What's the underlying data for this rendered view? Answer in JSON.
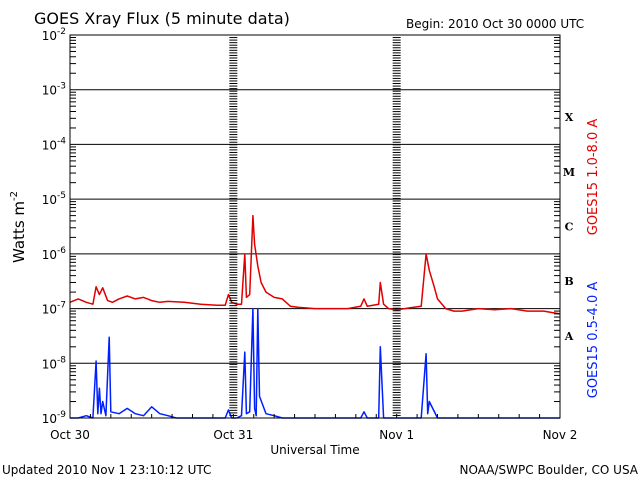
{
  "chart_data": {
    "type": "line",
    "title": "GOES Xray Flux (5 minute data)",
    "begin_label": "Begin:  2010 Oct 30 0000 UTC",
    "xlabel": "Universal Time",
    "ylabel_base": "Watts m",
    "ylabel_exp": "-2",
    "footer_left": "Updated 2010 Nov  1 23:10:12 UTC",
    "footer_right": "NOAA/SWPC Boulder, CO USA",
    "x_ticks": [
      "Oct 30",
      "Oct 31",
      "Nov 1",
      "Nov 2"
    ],
    "xlim_days": [
      0,
      3
    ],
    "y_scale": "log",
    "ylim": [
      1e-09,
      0.01
    ],
    "y_ticks": [
      {
        "value": 1e-09,
        "base": "10",
        "exp": "-9"
      },
      {
        "value": 1e-08,
        "base": "10",
        "exp": "-8"
      },
      {
        "value": 1e-07,
        "base": "10",
        "exp": "-7"
      },
      {
        "value": 1e-06,
        "base": "10",
        "exp": "-6"
      },
      {
        "value": 1e-05,
        "base": "10",
        "exp": "-5"
      },
      {
        "value": 0.0001,
        "base": "10",
        "exp": "-4"
      },
      {
        "value": 0.001,
        "base": "10",
        "exp": "-3"
      },
      {
        "value": 0.01,
        "base": "10",
        "exp": "-2"
      }
    ],
    "flare_classes": [
      {
        "label": "A",
        "low": 1e-08,
        "high": 1e-07
      },
      {
        "label": "B",
        "low": 1e-07,
        "high": 1e-06
      },
      {
        "label": "C",
        "low": 1e-06,
        "high": 1e-05
      },
      {
        "label": "M",
        "low": 1e-05,
        "high": 0.0001
      },
      {
        "label": "X",
        "low": 0.0001,
        "high": 0.001
      }
    ],
    "grid": true,
    "series": [
      {
        "name": "GOES15 1.0-8.0 A",
        "color": "#e00000",
        "points": [
          [
            0.0,
            1.3e-07
          ],
          [
            0.05,
            1.5e-07
          ],
          [
            0.1,
            1.3e-07
          ],
          [
            0.14,
            1.2e-07
          ],
          [
            0.16,
            2.5e-07
          ],
          [
            0.18,
            1.8e-07
          ],
          [
            0.2,
            2.4e-07
          ],
          [
            0.23,
            1.4e-07
          ],
          [
            0.26,
            1.3e-07
          ],
          [
            0.3,
            1.5e-07
          ],
          [
            0.35,
            1.7e-07
          ],
          [
            0.4,
            1.5e-07
          ],
          [
            0.45,
            1.6e-07
          ],
          [
            0.5,
            1.4e-07
          ],
          [
            0.55,
            1.3e-07
          ],
          [
            0.6,
            1.35e-07
          ],
          [
            0.7,
            1.3e-07
          ],
          [
            0.8,
            1.2e-07
          ],
          [
            0.9,
            1.15e-07
          ],
          [
            0.95,
            1.15e-07
          ],
          [
            0.97,
            1.8e-07
          ],
          [
            0.99,
            1.3e-07
          ],
          [
            1.02,
            1.2e-07
          ],
          [
            1.05,
            1.2e-07
          ],
          [
            1.07,
            1e-06
          ],
          [
            1.08,
            1.6e-07
          ],
          [
            1.1,
            1.8e-07
          ],
          [
            1.12,
            5e-06
          ],
          [
            1.13,
            1.5e-06
          ],
          [
            1.15,
            6e-07
          ],
          [
            1.17,
            3e-07
          ],
          [
            1.2,
            2e-07
          ],
          [
            1.25,
            1.6e-07
          ],
          [
            1.3,
            1.5e-07
          ],
          [
            1.35,
            1.1e-07
          ],
          [
            1.4,
            1.05e-07
          ],
          [
            1.5,
            1e-07
          ],
          [
            1.6,
            1e-07
          ],
          [
            1.7,
            1e-07
          ],
          [
            1.78,
            1.1e-07
          ],
          [
            1.8,
            1.5e-07
          ],
          [
            1.82,
            1.1e-07
          ],
          [
            1.89,
            1.2e-07
          ],
          [
            1.9,
            3e-07
          ],
          [
            1.92,
            1.2e-07
          ],
          [
            1.95,
            1e-07
          ],
          [
            2.0,
            9.5e-08
          ],
          [
            2.05,
            1e-07
          ],
          [
            2.1,
            1.05e-07
          ],
          [
            2.15,
            1.1e-07
          ],
          [
            2.18,
            1e-06
          ],
          [
            2.2,
            5e-07
          ],
          [
            2.23,
            2.5e-07
          ],
          [
            2.25,
            1.5e-07
          ],
          [
            2.3,
            1e-07
          ],
          [
            2.35,
            9e-08
          ],
          [
            2.4,
            9e-08
          ],
          [
            2.5,
            1e-07
          ],
          [
            2.6,
            9.5e-08
          ],
          [
            2.7,
            1e-07
          ],
          [
            2.8,
            9e-08
          ],
          [
            2.9,
            9e-08
          ],
          [
            3.0,
            8e-08
          ]
        ]
      },
      {
        "name": "GOES15 0.5-4.0 A",
        "color": "#0020ff",
        "points": [
          [
            0.0,
            1e-09
          ],
          [
            0.05,
            1e-09
          ],
          [
            0.1,
            1.1e-09
          ],
          [
            0.14,
            1e-09
          ],
          [
            0.16,
            1.1e-08
          ],
          [
            0.17,
            1.2e-09
          ],
          [
            0.18,
            3.5e-09
          ],
          [
            0.19,
            1.2e-09
          ],
          [
            0.2,
            2e-09
          ],
          [
            0.22,
            1.1e-09
          ],
          [
            0.24,
            3e-08
          ],
          [
            0.25,
            1.3e-09
          ],
          [
            0.3,
            1.2e-09
          ],
          [
            0.35,
            1.5e-09
          ],
          [
            0.4,
            1.2e-09
          ],
          [
            0.45,
            1.1e-09
          ],
          [
            0.5,
            1.6e-09
          ],
          [
            0.55,
            1.2e-09
          ],
          [
            0.6,
            1.1e-09
          ],
          [
            0.65,
            1e-09
          ],
          [
            0.7,
            1e-09
          ],
          [
            0.8,
            1e-09
          ],
          [
            0.9,
            1e-09
          ],
          [
            0.95,
            1e-09
          ],
          [
            0.97,
            1.4e-09
          ],
          [
            0.99,
            1e-09
          ],
          [
            1.02,
            1e-09
          ],
          [
            1.05,
            1.1e-09
          ],
          [
            1.07,
            1.6e-08
          ],
          [
            1.08,
            1.2e-09
          ],
          [
            1.1,
            1.3e-09
          ],
          [
            1.12,
            1e-07
          ],
          [
            1.13,
            1.5e-09
          ],
          [
            1.14,
            1.1e-09
          ],
          [
            1.15,
            1e-07
          ],
          [
            1.16,
            2.5e-09
          ],
          [
            1.2,
            1.2e-09
          ],
          [
            1.25,
            1.1e-09
          ],
          [
            1.3,
            1e-09
          ],
          [
            1.35,
            1e-09
          ],
          [
            1.4,
            1e-09
          ],
          [
            1.5,
            1e-09
          ],
          [
            1.6,
            1e-09
          ],
          [
            1.7,
            1e-09
          ],
          [
            1.78,
            1e-09
          ],
          [
            1.8,
            1.3e-09
          ],
          [
            1.82,
            1e-09
          ],
          [
            1.89,
            1e-09
          ],
          [
            1.9,
            2e-08
          ],
          [
            1.92,
            1e-09
          ],
          [
            1.95,
            1e-09
          ],
          [
            2.0,
            1e-09
          ],
          [
            2.1,
            1e-09
          ],
          [
            2.15,
            1e-09
          ],
          [
            2.18,
            1.5e-08
          ],
          [
            2.19,
            1.2e-09
          ],
          [
            2.2,
            2e-09
          ],
          [
            2.25,
            1e-09
          ],
          [
            2.3,
            1e-09
          ],
          [
            2.4,
            1e-09
          ],
          [
            2.5,
            1e-09
          ],
          [
            2.6,
            1e-09
          ],
          [
            2.7,
            1e-09
          ],
          [
            2.8,
            1e-09
          ],
          [
            2.9,
            1e-09
          ],
          [
            3.0,
            1e-09
          ]
        ]
      }
    ]
  }
}
